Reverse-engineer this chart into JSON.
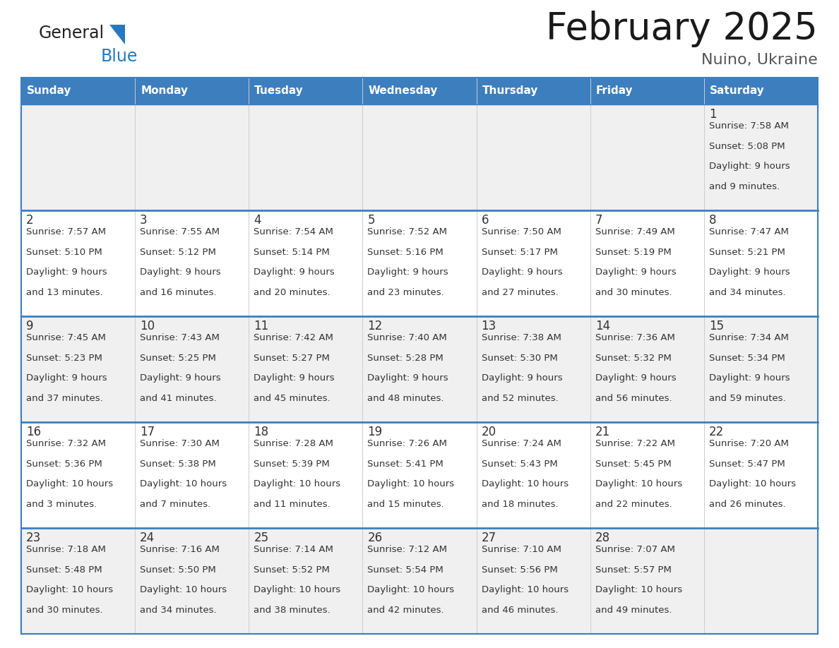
{
  "title": "February 2025",
  "subtitle": "Nuino, Ukraine",
  "header_bg_color": "#3d7ebf",
  "header_text_color": "#ffffff",
  "cell_bg_even": "#f0f0f0",
  "cell_bg_odd": "#ffffff",
  "border_color": "#3d7ebf",
  "divider_color": "#3d7ebf",
  "text_color": "#333333",
  "days_of_week": [
    "Sunday",
    "Monday",
    "Tuesday",
    "Wednesday",
    "Thursday",
    "Friday",
    "Saturday"
  ],
  "weeks": [
    [
      {
        "day": null,
        "info": null
      },
      {
        "day": null,
        "info": null
      },
      {
        "day": null,
        "info": null
      },
      {
        "day": null,
        "info": null
      },
      {
        "day": null,
        "info": null
      },
      {
        "day": null,
        "info": null
      },
      {
        "day": 1,
        "info": "Sunrise: 7:58 AM\nSunset: 5:08 PM\nDaylight: 9 hours\nand 9 minutes."
      }
    ],
    [
      {
        "day": 2,
        "info": "Sunrise: 7:57 AM\nSunset: 5:10 PM\nDaylight: 9 hours\nand 13 minutes."
      },
      {
        "day": 3,
        "info": "Sunrise: 7:55 AM\nSunset: 5:12 PM\nDaylight: 9 hours\nand 16 minutes."
      },
      {
        "day": 4,
        "info": "Sunrise: 7:54 AM\nSunset: 5:14 PM\nDaylight: 9 hours\nand 20 minutes."
      },
      {
        "day": 5,
        "info": "Sunrise: 7:52 AM\nSunset: 5:16 PM\nDaylight: 9 hours\nand 23 minutes."
      },
      {
        "day": 6,
        "info": "Sunrise: 7:50 AM\nSunset: 5:17 PM\nDaylight: 9 hours\nand 27 minutes."
      },
      {
        "day": 7,
        "info": "Sunrise: 7:49 AM\nSunset: 5:19 PM\nDaylight: 9 hours\nand 30 minutes."
      },
      {
        "day": 8,
        "info": "Sunrise: 7:47 AM\nSunset: 5:21 PM\nDaylight: 9 hours\nand 34 minutes."
      }
    ],
    [
      {
        "day": 9,
        "info": "Sunrise: 7:45 AM\nSunset: 5:23 PM\nDaylight: 9 hours\nand 37 minutes."
      },
      {
        "day": 10,
        "info": "Sunrise: 7:43 AM\nSunset: 5:25 PM\nDaylight: 9 hours\nand 41 minutes."
      },
      {
        "day": 11,
        "info": "Sunrise: 7:42 AM\nSunset: 5:27 PM\nDaylight: 9 hours\nand 45 minutes."
      },
      {
        "day": 12,
        "info": "Sunrise: 7:40 AM\nSunset: 5:28 PM\nDaylight: 9 hours\nand 48 minutes."
      },
      {
        "day": 13,
        "info": "Sunrise: 7:38 AM\nSunset: 5:30 PM\nDaylight: 9 hours\nand 52 minutes."
      },
      {
        "day": 14,
        "info": "Sunrise: 7:36 AM\nSunset: 5:32 PM\nDaylight: 9 hours\nand 56 minutes."
      },
      {
        "day": 15,
        "info": "Sunrise: 7:34 AM\nSunset: 5:34 PM\nDaylight: 9 hours\nand 59 minutes."
      }
    ],
    [
      {
        "day": 16,
        "info": "Sunrise: 7:32 AM\nSunset: 5:36 PM\nDaylight: 10 hours\nand 3 minutes."
      },
      {
        "day": 17,
        "info": "Sunrise: 7:30 AM\nSunset: 5:38 PM\nDaylight: 10 hours\nand 7 minutes."
      },
      {
        "day": 18,
        "info": "Sunrise: 7:28 AM\nSunset: 5:39 PM\nDaylight: 10 hours\nand 11 minutes."
      },
      {
        "day": 19,
        "info": "Sunrise: 7:26 AM\nSunset: 5:41 PM\nDaylight: 10 hours\nand 15 minutes."
      },
      {
        "day": 20,
        "info": "Sunrise: 7:24 AM\nSunset: 5:43 PM\nDaylight: 10 hours\nand 18 minutes."
      },
      {
        "day": 21,
        "info": "Sunrise: 7:22 AM\nSunset: 5:45 PM\nDaylight: 10 hours\nand 22 minutes."
      },
      {
        "day": 22,
        "info": "Sunrise: 7:20 AM\nSunset: 5:47 PM\nDaylight: 10 hours\nand 26 minutes."
      }
    ],
    [
      {
        "day": 23,
        "info": "Sunrise: 7:18 AM\nSunset: 5:48 PM\nDaylight: 10 hours\nand 30 minutes."
      },
      {
        "day": 24,
        "info": "Sunrise: 7:16 AM\nSunset: 5:50 PM\nDaylight: 10 hours\nand 34 minutes."
      },
      {
        "day": 25,
        "info": "Sunrise: 7:14 AM\nSunset: 5:52 PM\nDaylight: 10 hours\nand 38 minutes."
      },
      {
        "day": 26,
        "info": "Sunrise: 7:12 AM\nSunset: 5:54 PM\nDaylight: 10 hours\nand 42 minutes."
      },
      {
        "day": 27,
        "info": "Sunrise: 7:10 AM\nSunset: 5:56 PM\nDaylight: 10 hours\nand 46 minutes."
      },
      {
        "day": 28,
        "info": "Sunrise: 7:07 AM\nSunset: 5:57 PM\nDaylight: 10 hours\nand 49 minutes."
      },
      {
        "day": null,
        "info": null
      }
    ]
  ],
  "logo_general_color": "#222222",
  "logo_blue_color": "#2878be",
  "logo_triangle_color": "#2878be"
}
